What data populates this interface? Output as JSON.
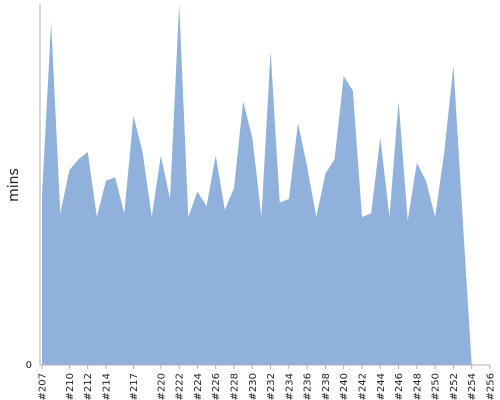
{
  "chart_data": {
    "type": "area",
    "ylabel": "mins",
    "y_tick_labels": [
      "0"
    ],
    "ylim": [
      0,
      100
    ],
    "grid": false,
    "legend": "none",
    "colors": {
      "fill": "#8fb1db",
      "axis": "#b0b0b0",
      "text": "#222222"
    },
    "categories": [
      "#207",
      "#208",
      "#209",
      "#210",
      "#211",
      "#212",
      "#213",
      "#214",
      "#215",
      "#216",
      "#217",
      "#218",
      "#219",
      "#220",
      "#221",
      "#222",
      "#223",
      "#224",
      "#225",
      "#226",
      "#227",
      "#228",
      "#229",
      "#230",
      "#231",
      "#232",
      "#233",
      "#234",
      "#235",
      "#236",
      "#237",
      "#238",
      "#239",
      "#240",
      "#241",
      "#242",
      "#243",
      "#244",
      "#245",
      "#246",
      "#247",
      "#248",
      "#249",
      "#250",
      "#251",
      "#252",
      "#253",
      "#254",
      "#255",
      "#256"
    ],
    "x_tick_labels": [
      "#207",
      "#210",
      "#212",
      "#214",
      "#217",
      "#220",
      "#222",
      "#224",
      "#226",
      "#228",
      "#230",
      "#232",
      "#234",
      "#236",
      "#238",
      "#240",
      "#242",
      "#244",
      "#246",
      "#248",
      "#250",
      "#252",
      "#254",
      "#256"
    ],
    "series": [
      {
        "values": [
          47,
          95,
          42,
          54,
          57,
          59,
          41,
          51,
          52,
          42,
          69,
          59,
          41,
          58,
          46,
          100,
          41,
          48,
          44,
          58,
          43,
          49,
          73,
          63,
          41,
          87,
          45,
          46,
          67,
          55,
          41,
          53,
          57,
          80,
          76,
          41,
          42,
          63,
          41,
          73,
          40,
          56,
          51,
          41,
          59,
          83,
          41,
          0,
          0,
          0
        ],
        "clip_top": 100
      }
    ]
  }
}
